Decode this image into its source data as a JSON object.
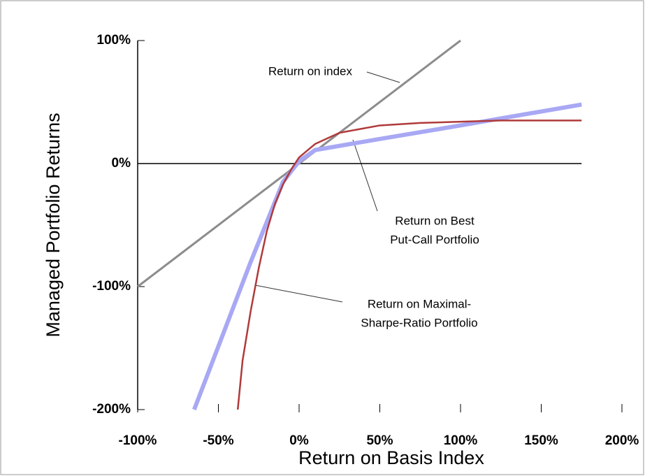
{
  "chart_data": {
    "type": "line",
    "x_label": "Return on Basis Index",
    "y_label": "Managed Portfolio Returns",
    "xlim": [
      -100,
      200
    ],
    "ylim": [
      -200,
      100
    ],
    "xticks": [
      {
        "value": -100,
        "label": "-100%"
      },
      {
        "value": -50,
        "label": "-50%"
      },
      {
        "value": 0,
        "label": "0%"
      },
      {
        "value": 50,
        "label": "50%"
      },
      {
        "value": 100,
        "label": "100%"
      },
      {
        "value": 150,
        "label": "150%"
      },
      {
        "value": 200,
        "label": "200%"
      }
    ],
    "yticks": [
      {
        "value": -200,
        "label": "-200%"
      },
      {
        "value": -100,
        "label": "-100%"
      },
      {
        "value": 0,
        "label": "0%"
      },
      {
        "value": 100,
        "label": "100%"
      }
    ],
    "series": [
      {
        "name": "Return on index",
        "color": "#8c8c8c",
        "width": 3,
        "x": [
          -100,
          100
        ],
        "values": [
          -100,
          100
        ]
      },
      {
        "name": "Return on Maximal-Sharpe-Ratio Portfolio",
        "color": "#a8a8f4",
        "width": 6,
        "x": [
          -65,
          -30,
          -10,
          0,
          10,
          50,
          100,
          175
        ],
        "values": [
          -200,
          -80,
          -15,
          2,
          11,
          20,
          31,
          48
        ]
      },
      {
        "name": "Return on Best Put-Call Portfolio",
        "color": "#b03a3a",
        "width": 2.5,
        "x": [
          -38,
          -35,
          -30,
          -25,
          -20,
          -15,
          -10,
          -5,
          0,
          10,
          25,
          50,
          75,
          100,
          125,
          150,
          175
        ],
        "values": [
          -200,
          -160,
          -120,
          -85,
          -55,
          -33,
          -17,
          -5,
          5,
          16,
          25,
          31,
          33,
          34,
          35,
          35,
          35
        ]
      }
    ],
    "annotations": [
      {
        "lines": [
          "Return on index"
        ]
      },
      {
        "lines": [
          "Return on Best",
          "Put-Call Portfolio"
        ]
      },
      {
        "lines": [
          "Return on Maximal-",
          "Sharpe-Ratio Portfolio"
        ]
      }
    ]
  }
}
